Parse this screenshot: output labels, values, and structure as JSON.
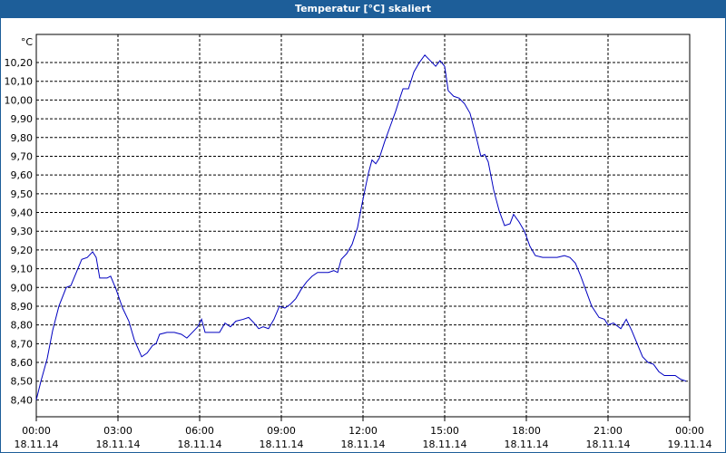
{
  "chart_data": {
    "type": "line",
    "title": "Temperatur [°C] skaliert",
    "y_unit": "°C",
    "xlim": [
      0,
      24
    ],
    "ylim": [
      8.31,
      10.35
    ],
    "xticks": [
      {
        "value": 0,
        "label": "00:00"
      },
      {
        "value": 3,
        "label": "03:00"
      },
      {
        "value": 6,
        "label": "06:00"
      },
      {
        "value": 9,
        "label": "09:00"
      },
      {
        "value": 12,
        "label": "12:00"
      },
      {
        "value": 15,
        "label": "15:00"
      },
      {
        "value": 18,
        "label": "18:00"
      },
      {
        "value": 21,
        "label": "21:00"
      },
      {
        "value": 24,
        "label": "00:00"
      }
    ],
    "xtick_dates": [
      "18.11.14",
      "18.11.14",
      "18.11.14",
      "18.11.14",
      "18.11.14",
      "18.11.14",
      "18.11.14",
      "18.11.14",
      "19.11.14"
    ],
    "yticks": [
      {
        "value": 8.4,
        "label": "8,40"
      },
      {
        "value": 8.5,
        "label": "8,50"
      },
      {
        "value": 8.6,
        "label": "8,60"
      },
      {
        "value": 8.7,
        "label": "8,70"
      },
      {
        "value": 8.8,
        "label": "8,80"
      },
      {
        "value": 8.9,
        "label": "8,90"
      },
      {
        "value": 9.0,
        "label": "9,00"
      },
      {
        "value": 9.1,
        "label": "9,10"
      },
      {
        "value": 9.2,
        "label": "9,20"
      },
      {
        "value": 9.3,
        "label": "9,30"
      },
      {
        "value": 9.4,
        "label": "9,40"
      },
      {
        "value": 9.5,
        "label": "9,50"
      },
      {
        "value": 9.6,
        "label": "9,60"
      },
      {
        "value": 9.7,
        "label": "9,70"
      },
      {
        "value": 9.8,
        "label": "9,80"
      },
      {
        "value": 9.9,
        "label": "9,90"
      },
      {
        "value": 10.0,
        "label": "10,00"
      },
      {
        "value": 10.1,
        "label": "10,10"
      },
      {
        "value": 10.2,
        "label": "10,20"
      }
    ],
    "grid": true,
    "color": "#0000c0",
    "x": [
      0,
      0.17,
      0.4,
      0.6,
      0.83,
      1.1,
      1.27,
      1.47,
      1.67,
      1.87,
      2.07,
      2.2,
      2.33,
      2.6,
      2.73,
      2.93,
      3.17,
      3.4,
      3.6,
      3.87,
      4.07,
      4.27,
      4.4,
      4.53,
      4.8,
      5.07,
      5.33,
      5.53,
      5.73,
      5.93,
      6.07,
      6.2,
      6.47,
      6.73,
      6.93,
      7.13,
      7.33,
      7.6,
      7.8,
      8.0,
      8.17,
      8.33,
      8.53,
      8.73,
      8.93,
      9.13,
      9.33,
      9.53,
      9.73,
      9.93,
      10.13,
      10.33,
      10.53,
      10.73,
      10.93,
      11.07,
      11.2,
      11.4,
      11.6,
      11.8,
      11.93,
      12.07,
      12.2,
      12.33,
      12.47,
      12.6,
      12.8,
      13.0,
      13.2,
      13.33,
      13.47,
      13.67,
      13.87,
      14.07,
      14.27,
      14.47,
      14.67,
      14.83,
      15.0,
      15.13,
      15.33,
      15.53,
      15.73,
      15.93,
      16.13,
      16.33,
      16.47,
      16.6,
      16.8,
      17.0,
      17.2,
      17.4,
      17.53,
      17.73,
      17.93,
      18.13,
      18.33,
      18.6,
      18.87,
      19.13,
      19.4,
      19.6,
      19.8,
      20.0,
      20.2,
      20.4,
      20.67,
      20.87,
      21.0,
      21.2,
      21.47,
      21.67,
      21.87,
      22.07,
      22.27,
      22.47,
      22.67,
      22.87,
      23.07,
      23.27,
      23.47,
      23.67,
      23.87
    ],
    "values": [
      8.4,
      8.5,
      8.62,
      8.77,
      8.9,
      9.0,
      9.01,
      9.08,
      9.15,
      9.16,
      9.19,
      9.16,
      9.05,
      9.05,
      9.06,
      8.99,
      8.89,
      8.82,
      8.72,
      8.63,
      8.65,
      8.69,
      8.7,
      8.75,
      8.76,
      8.76,
      8.75,
      8.73,
      8.76,
      8.79,
      8.83,
      8.76,
      8.76,
      8.76,
      8.81,
      8.79,
      8.82,
      8.83,
      8.84,
      8.81,
      8.78,
      8.79,
      8.78,
      8.83,
      8.9,
      8.89,
      8.91,
      8.94,
      8.99,
      9.03,
      9.06,
      9.08,
      9.08,
      9.08,
      9.09,
      9.08,
      9.15,
      9.18,
      9.23,
      9.32,
      9.42,
      9.52,
      9.61,
      9.68,
      9.66,
      9.69,
      9.78,
      9.86,
      9.94,
      10.0,
      10.06,
      10.06,
      10.15,
      10.2,
      10.24,
      10.21,
      10.18,
      10.21,
      10.18,
      10.05,
      10.02,
      10.01,
      9.98,
      9.93,
      9.82,
      9.7,
      9.71,
      9.67,
      9.52,
      9.41,
      9.33,
      9.34,
      9.39,
      9.35,
      9.3,
      9.22,
      9.17,
      9.16,
      9.16,
      9.16,
      9.17,
      9.16,
      9.13,
      9.06,
      8.98,
      8.9,
      8.84,
      8.83,
      8.8,
      8.81,
      8.78,
      8.83,
      8.77,
      8.7,
      8.63,
      8.6,
      8.59,
      8.55,
      8.53,
      8.53,
      8.53,
      8.51,
      8.5
    ]
  }
}
